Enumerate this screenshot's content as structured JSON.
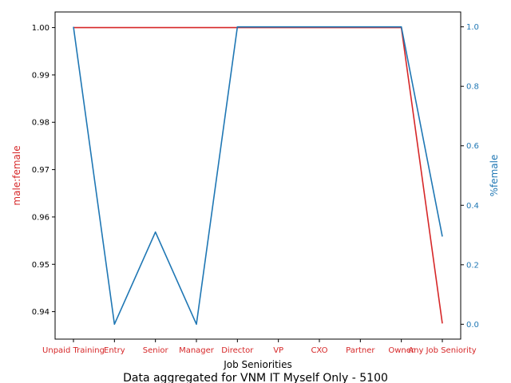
{
  "chart_data": {
    "type": "line",
    "title": "Data aggregated for VNM IT Myself Only - 5100",
    "xlabel": "Job Seniorities",
    "ylabel_left": "male:female",
    "ylabel_right": "%⁧female",
    "categories": [
      "Unpaid Training",
      "Entry",
      "Senior",
      "Manager",
      "Director",
      "VP",
      "CXO",
      "Partner",
      "Owner",
      "Any Job Seniority"
    ],
    "series": [
      {
        "axis": "left",
        "color": "#d62728",
        "values": [
          1.0,
          1.0,
          1.0,
          1.0,
          1.0,
          1.0,
          1.0,
          1.0,
          1.0,
          0.9375
        ]
      },
      {
        "axis": "right",
        "color": "#1f77b4",
        "values": [
          1.0,
          0.0,
          0.31,
          0.0,
          1.0,
          1.0,
          1.0,
          1.0,
          1.0,
          0.295
        ]
      }
    ],
    "ylim_left": [
      0.9342,
      1.0033
    ],
    "ylim_right": [
      -0.05,
      1.05
    ],
    "yticks_left": [
      "0.94",
      "0.95",
      "0.96",
      "0.97",
      "0.98",
      "0.99",
      "1.00"
    ],
    "yticks_left_values": [
      0.94,
      0.95,
      0.96,
      0.97,
      0.98,
      0.99,
      1.0
    ],
    "yticks_right": [
      "0.0",
      "0.2",
      "0.4",
      "0.6",
      "0.8",
      "1.0"
    ],
    "yticks_right_values": [
      0.0,
      0.2,
      0.4,
      0.6,
      0.8,
      1.0
    ],
    "grid": false,
    "colors": {
      "left_axis": "#d62728",
      "right_axis": "#1f77b4",
      "frame": "#000000"
    }
  }
}
